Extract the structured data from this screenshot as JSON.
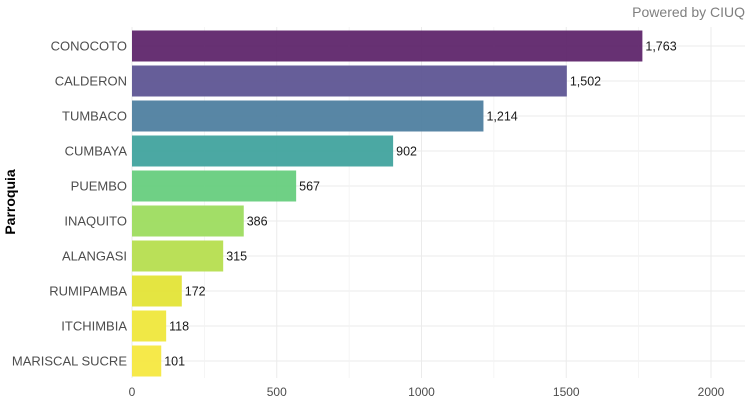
{
  "chart_data": {
    "type": "bar",
    "orientation": "horizontal",
    "title": "",
    "caption": "Powered by CIUQ",
    "xlabel": "",
    "ylabel": "Parroquia",
    "categories": [
      "CONOCOTO",
      "CALDERON",
      "TUMBACO",
      "CUMBAYA",
      "PUEMBO",
      "INAQUITO",
      "ALANGASI",
      "RUMIPAMBA",
      "ITCHIMBIA",
      "MARISCAL SUCRE"
    ],
    "values": [
      1763,
      1502,
      1214,
      902,
      567,
      386,
      315,
      172,
      118,
      101
    ],
    "value_labels": [
      "1,763",
      "1,502",
      "1,214",
      "902",
      "567",
      "386",
      "315",
      "172",
      "118",
      "101"
    ],
    "colors": [
      "#5f266c",
      "#5e5593",
      "#4f7fa0",
      "#41a39e",
      "#67cd7e",
      "#9ddc5f",
      "#b6de4f",
      "#e3e437",
      "#efe73c",
      "#f5e840"
    ],
    "xlim": [
      0,
      2100
    ],
    "xticks": [
      0,
      500,
      1000,
      1500,
      2000
    ],
    "xtick_labels": [
      "0",
      "500",
      "1000",
      "1500",
      "2000"
    ],
    "x_minor_ticks": [
      250,
      750,
      1250,
      1750
    ],
    "grid": true,
    "legend": "none"
  }
}
